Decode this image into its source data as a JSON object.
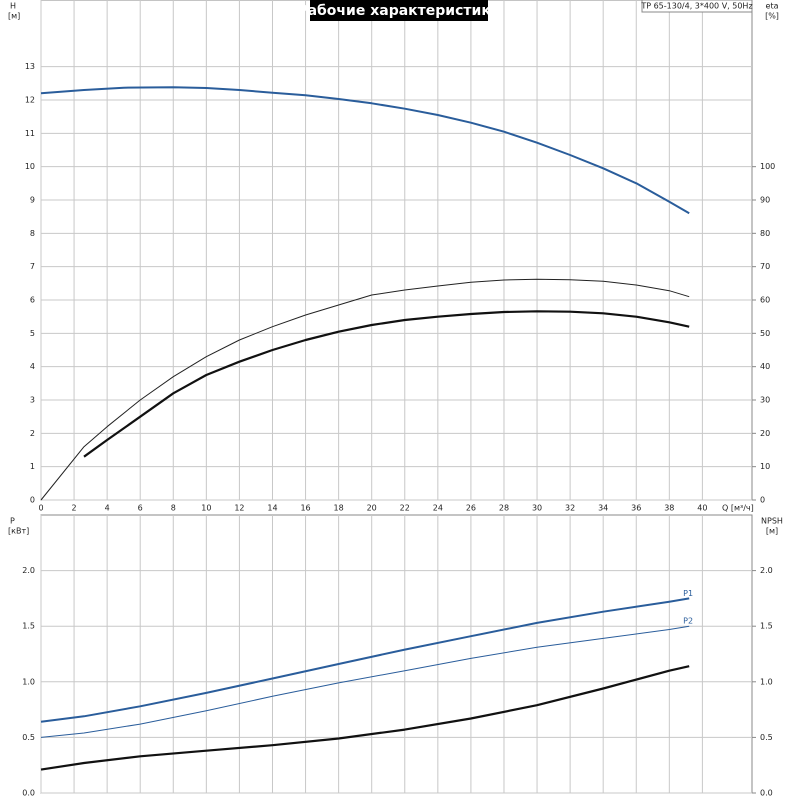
{
  "chart_data": [
    {
      "type": "line",
      "title": "Рабочие характеристики",
      "annotation": "TP 65-130/4, 3*400 V, 50Hz",
      "ylabel": "H",
      "ylabel_unit": "[м]",
      "y2label": "eta",
      "y2label_unit": "[%]",
      "xlabel": "Q [м³/ч]",
      "xlim": [
        0,
        43
      ],
      "xticks": [
        0,
        2,
        4,
        6,
        8,
        10,
        12,
        14,
        16,
        18,
        20,
        22,
        24,
        26,
        28,
        30,
        32,
        34,
        36,
        38,
        40
      ],
      "ylim": [
        0,
        15
      ],
      "yticks": [
        0,
        1,
        2,
        3,
        4,
        5,
        6,
        7,
        8,
        9,
        10,
        11,
        12,
        13
      ],
      "y2lim": [
        0,
        150
      ],
      "y2ticks": [
        0,
        10,
        20,
        30,
        40,
        50,
        60,
        70,
        80,
        90,
        100
      ],
      "grid": true,
      "series": [
        {
          "color": "#2a5d9b",
          "width": 2,
          "x": [
            0,
            2.6,
            5,
            8,
            10,
            12,
            14,
            16,
            18,
            20,
            22,
            24,
            26,
            28,
            30,
            32,
            34,
            36,
            38,
            39.2
          ],
          "values": [
            12.2,
            12.3,
            12.37,
            12.38,
            12.36,
            12.3,
            12.22,
            12.14,
            12.03,
            11.9,
            11.74,
            11.55,
            11.32,
            11.05,
            10.72,
            10.35,
            9.95,
            9.5,
            8.95,
            8.6
          ]
        },
        {
          "color": "#222222",
          "width": 1,
          "axis": "y2",
          "x": [
            0,
            2.6,
            4,
            6,
            8,
            10,
            12,
            14,
            16,
            18,
            20,
            22,
            24,
            26,
            28,
            30,
            32,
            34,
            36,
            38,
            39.2
          ],
          "values": [
            0,
            16,
            22,
            30,
            37,
            43,
            48,
            52,
            55.5,
            58.5,
            61.5,
            63,
            64.2,
            65.3,
            66,
            66.2,
            66.1,
            65.6,
            64.5,
            62.8,
            61
          ]
        },
        {
          "color": "#111111",
          "width": 2.2,
          "axis": "y2",
          "x": [
            2.6,
            4,
            6,
            8,
            10,
            12,
            14,
            16,
            18,
            20,
            22,
            24,
            26,
            28,
            30,
            32,
            34,
            36,
            38,
            39.2
          ],
          "values": [
            13,
            18,
            25,
            32,
            37.5,
            41.5,
            45,
            48,
            50.5,
            52.5,
            54,
            55,
            55.8,
            56.4,
            56.6,
            56.5,
            56,
            55,
            53.3,
            52
          ]
        }
      ]
    },
    {
      "type": "line",
      "ylabel": "P",
      "ylabel_unit": "[кВт]",
      "y2label": "NPSH",
      "y2label_unit": "[м]",
      "xlim": [
        0,
        43
      ],
      "xticks": [
        0,
        2,
        4,
        6,
        8,
        10,
        12,
        14,
        16,
        18,
        20,
        22,
        24,
        26,
        28,
        30,
        32,
        34,
        36,
        38,
        40
      ],
      "ylim": [
        0,
        2.5
      ],
      "yticks": [
        {
          "value": 0,
          "label": "0.0"
        },
        0.5,
        {
          "value": 1,
          "label": "1.0"
        },
        1.5,
        {
          "value": 2,
          "label": "2.0"
        }
      ],
      "y2lim": [
        0,
        2.5
      ],
      "y2ticks": [
        {
          "value": 0,
          "label": "0.0"
        },
        0.5,
        {
          "value": 1,
          "label": "1.0"
        },
        1.5,
        {
          "value": 2,
          "label": "2.0"
        }
      ],
      "grid": true,
      "print_xticks": false,
      "series": [
        {
          "name": "P1",
          "color": "#2a5d9b",
          "width": 2,
          "x": [
            0,
            2.6,
            6,
            10,
            14,
            18,
            22,
            26,
            30,
            34,
            38,
            39.2
          ],
          "values": [
            0.64,
            0.69,
            0.78,
            0.9,
            1.03,
            1.16,
            1.29,
            1.41,
            1.53,
            1.63,
            1.72,
            1.75
          ]
        },
        {
          "name": "P2",
          "color": "#2a5d9b",
          "width": 1,
          "x": [
            0,
            2.6,
            6,
            10,
            14,
            18,
            22,
            26,
            30,
            34,
            38,
            39.2
          ],
          "values": [
            0.5,
            0.54,
            0.62,
            0.74,
            0.87,
            0.99,
            1.1,
            1.21,
            1.31,
            1.39,
            1.47,
            1.5
          ]
        },
        {
          "color": "#111111",
          "width": 2.2,
          "axis": "y2",
          "x": [
            0,
            2.6,
            6,
            10,
            14,
            18,
            22,
            26,
            30,
            34,
            38,
            39.2
          ],
          "values": [
            0.21,
            0.27,
            0.33,
            0.38,
            0.43,
            0.49,
            0.57,
            0.67,
            0.79,
            0.94,
            1.1,
            1.14
          ]
        }
      ]
    }
  ]
}
